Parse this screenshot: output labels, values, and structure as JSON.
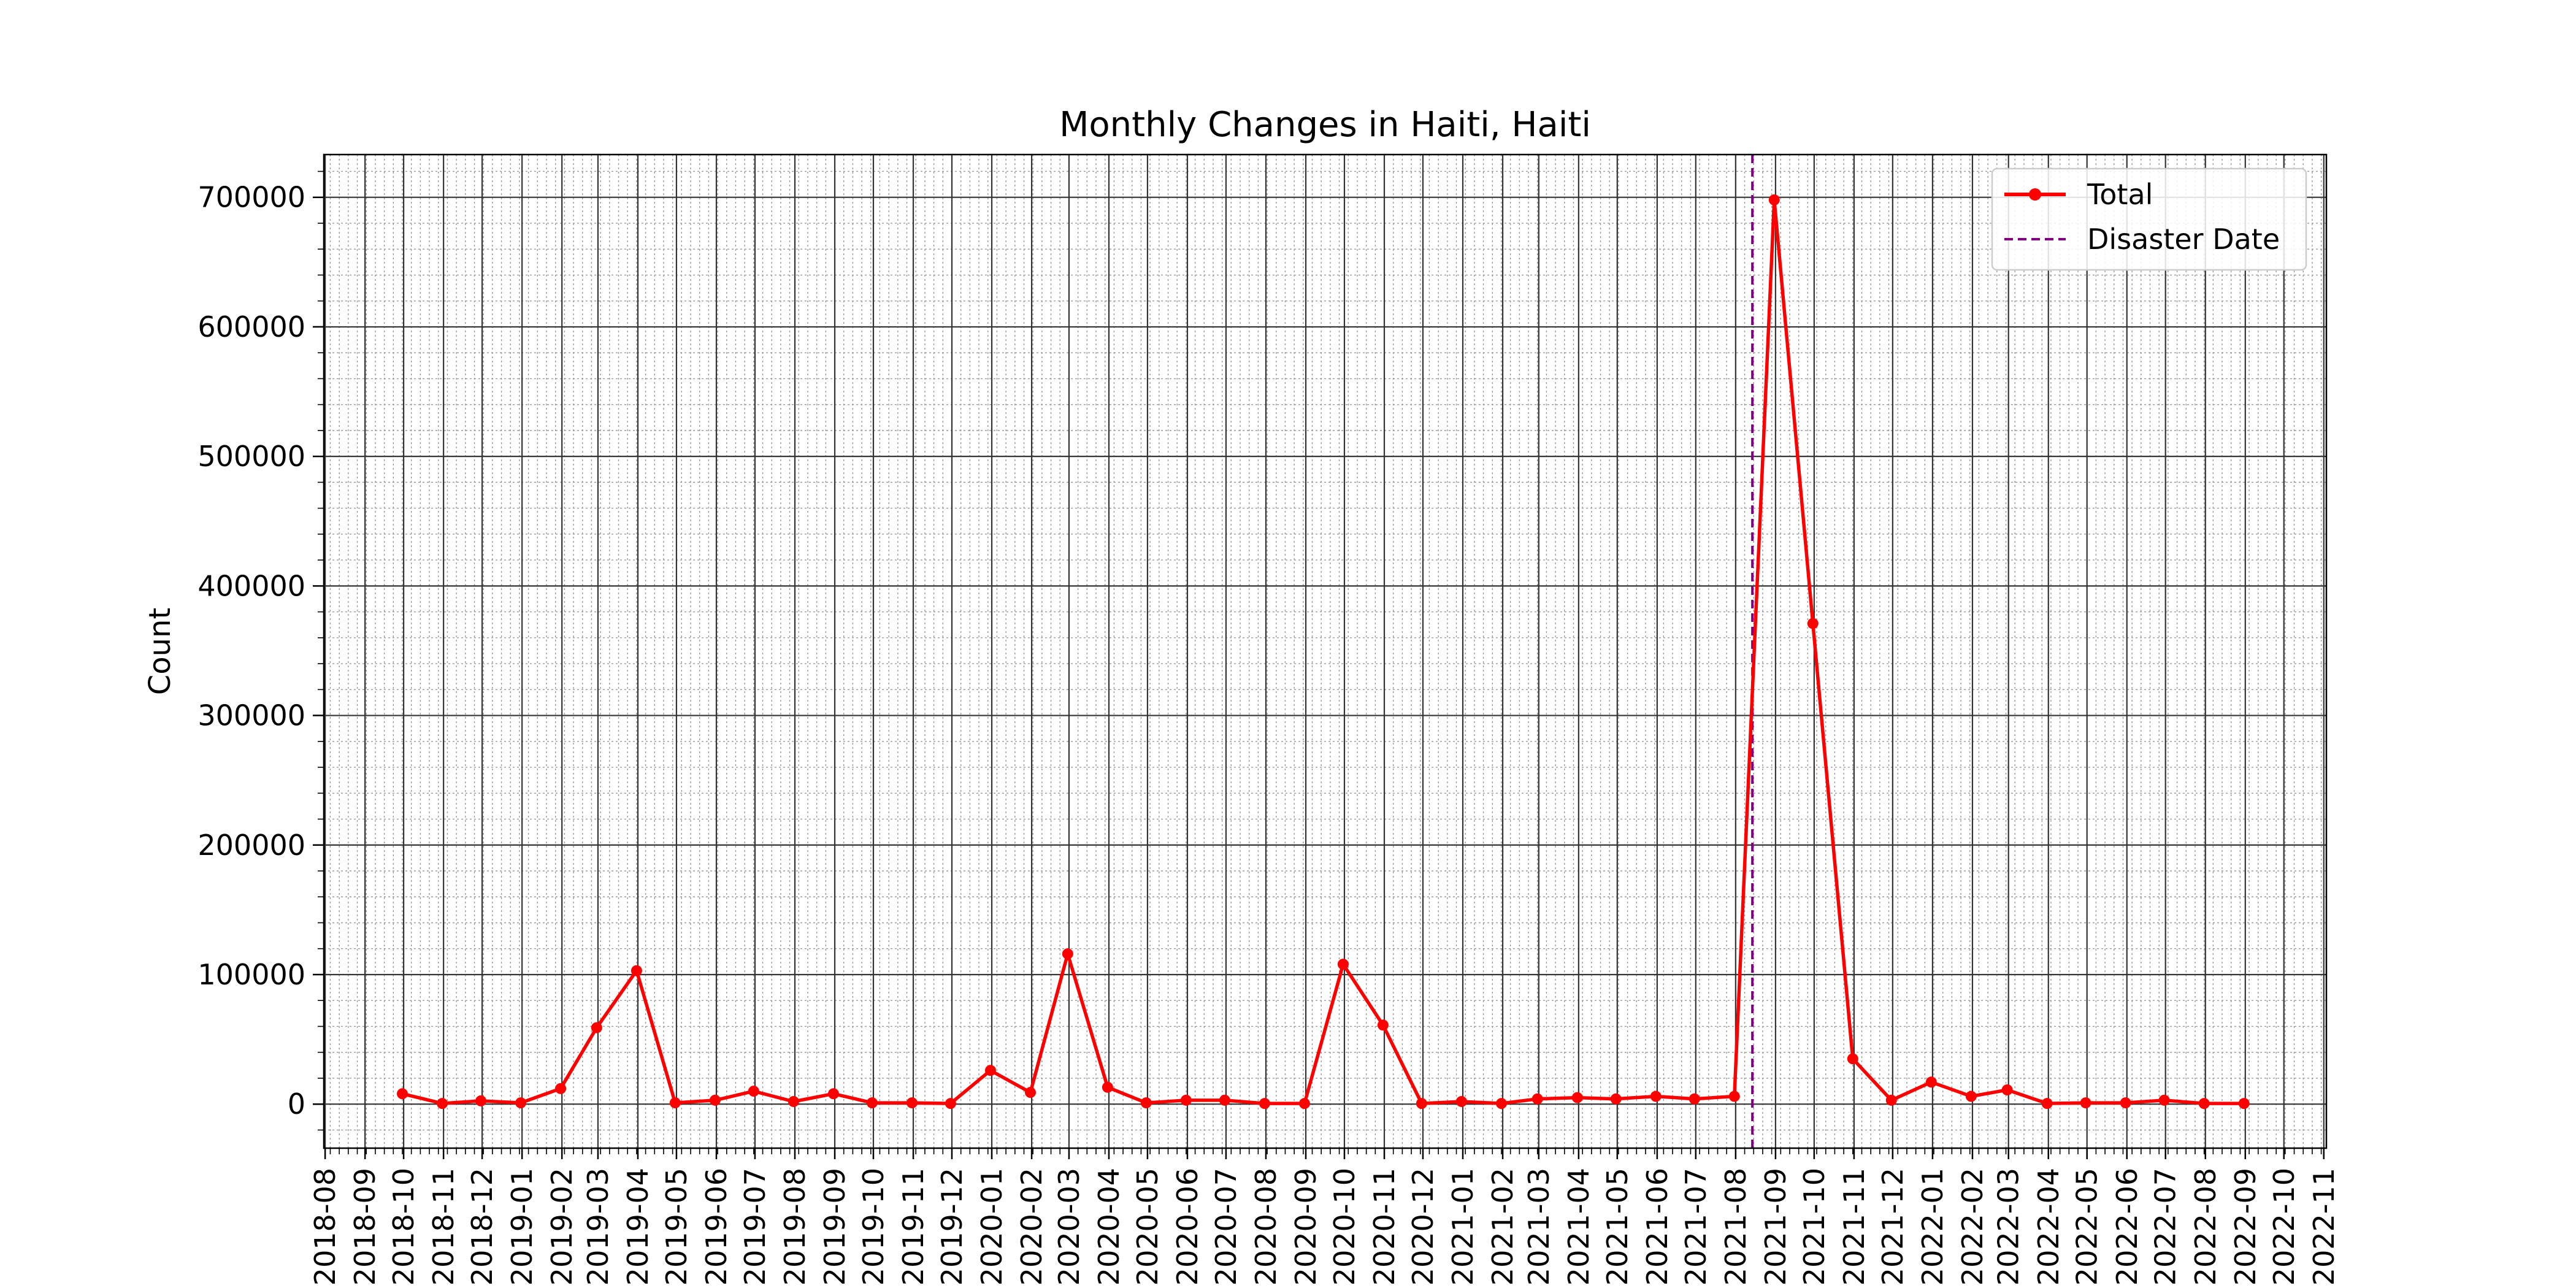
{
  "chart_data": {
    "type": "line",
    "title": "Monthly Changes in Haiti, Haiti",
    "xlabel": "",
    "ylabel": "Count",
    "xlim": [
      "2018-07-31",
      "2022-11-03"
    ],
    "ylim": [
      -34000,
      733000
    ],
    "yticks": [
      0,
      100000,
      200000,
      300000,
      400000,
      500000,
      600000,
      700000
    ],
    "xtick_labels": [
      "2018-08",
      "2018-09",
      "2018-10",
      "2018-11",
      "2018-12",
      "2019-01",
      "2019-02",
      "2019-03",
      "2019-04",
      "2019-05",
      "2019-06",
      "2019-07",
      "2019-08",
      "2019-09",
      "2019-10",
      "2019-11",
      "2019-12",
      "2020-01",
      "2020-02",
      "2020-03",
      "2020-04",
      "2020-05",
      "2020-06",
      "2020-07",
      "2020-08",
      "2020-09",
      "2020-10",
      "2020-11",
      "2020-12",
      "2021-01",
      "2021-02",
      "2021-03",
      "2021-04",
      "2021-05",
      "2021-06",
      "2021-07",
      "2021-08",
      "2021-09",
      "2021-10",
      "2021-11",
      "2021-12",
      "2022-01",
      "2022-02",
      "2022-03",
      "2022-04",
      "2022-05",
      "2022-06",
      "2022-07",
      "2022-08",
      "2022-09",
      "2022-10",
      "2022-11"
    ],
    "grid": "major and minor",
    "legend": "top-right",
    "series": [
      {
        "name": "Total",
        "color": "#ff0000",
        "marker": "circle",
        "x": [
          "2018-09-30",
          "2018-10-31",
          "2018-11-30",
          "2018-12-31",
          "2019-01-31",
          "2019-02-28",
          "2019-03-31",
          "2019-04-30",
          "2019-05-31",
          "2019-06-30",
          "2019-07-31",
          "2019-08-31",
          "2019-09-30",
          "2019-10-31",
          "2019-11-30",
          "2019-12-31",
          "2020-01-31",
          "2020-02-29",
          "2020-03-31",
          "2020-04-30",
          "2020-05-31",
          "2020-06-30",
          "2020-07-31",
          "2020-08-31",
          "2020-09-30",
          "2020-10-31",
          "2020-11-30",
          "2020-12-31",
          "2021-01-31",
          "2021-02-28",
          "2021-03-31",
          "2021-04-30",
          "2021-05-31",
          "2021-06-30",
          "2021-07-31",
          "2021-08-31",
          "2021-09-30",
          "2021-10-31",
          "2021-11-30",
          "2021-12-31",
          "2022-01-31",
          "2022-02-28",
          "2022-03-31",
          "2022-04-30",
          "2022-05-31",
          "2022-06-30",
          "2022-07-31",
          "2022-08-31"
        ],
        "y": [
          8000,
          500,
          2500,
          1000,
          12000,
          59000,
          103000,
          1000,
          3000,
          10000,
          2000,
          8000,
          1000,
          1000,
          500,
          26000,
          9000,
          116000,
          13000,
          1000,
          3000,
          3000,
          500,
          500,
          108000,
          61000,
          500,
          2000,
          500,
          4000,
          5000,
          4000,
          6000,
          4000,
          6000,
          698000,
          371000,
          35000,
          3000,
          17000,
          6000,
          11000,
          500,
          1000,
          1000,
          3000,
          500,
          500
        ]
      }
    ],
    "vlines": [
      {
        "name": "Disaster Date",
        "x": "2021-08-14",
        "color": "#800080",
        "style": "dashed"
      }
    ]
  }
}
